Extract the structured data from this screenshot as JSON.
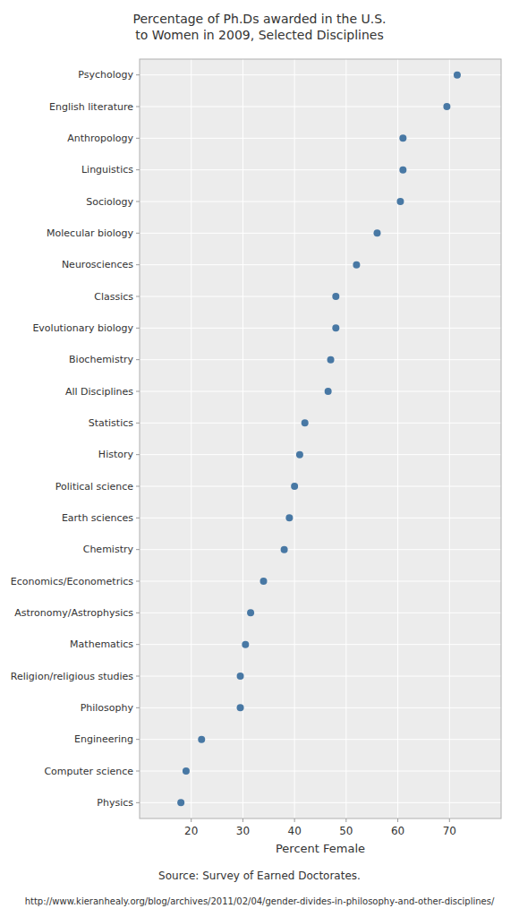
{
  "chart_data": {
    "type": "dot",
    "title": "Percentage of Ph.Ds awarded in the U.S. to Women in 2009, Selected Disciplines",
    "categories": [
      "Psychology",
      "English literature",
      "Anthropology",
      "Linguistics",
      "Sociology",
      "Molecular biology",
      "Neurosciences",
      "Classics",
      "Evolutionary biology",
      "Biochemistry",
      "All Disciplines",
      "Statistics",
      "History",
      "Political science",
      "Earth sciences",
      "Chemistry",
      "Economics/Econometrics",
      "Astronomy/Astrophysics",
      "Mathematics",
      "Religion/religious studies",
      "Philosophy",
      "Engineering",
      "Computer science",
      "Physics"
    ],
    "values": [
      71.5,
      69.5,
      61.0,
      61.0,
      60.5,
      56.0,
      52.0,
      48.0,
      48.0,
      47.0,
      46.5,
      42.0,
      41.0,
      40.0,
      39.0,
      38.0,
      34.0,
      31.5,
      30.5,
      29.5,
      29.5,
      22.0,
      19.0,
      18.0
    ],
    "color": "#4878a4",
    "x_label": "Percent Female",
    "xlim": [
      10,
      80
    ],
    "xticks": [
      20,
      30,
      40,
      50,
      60,
      70
    ],
    "grid": true,
    "annotations": [
      "Source: Survey of Earned Doctorates.",
      "http://www.kieranhealy.org/blog/archives/2011/02/04/gender-divides-in-philosophy-and-other-disciplines/"
    ]
  }
}
